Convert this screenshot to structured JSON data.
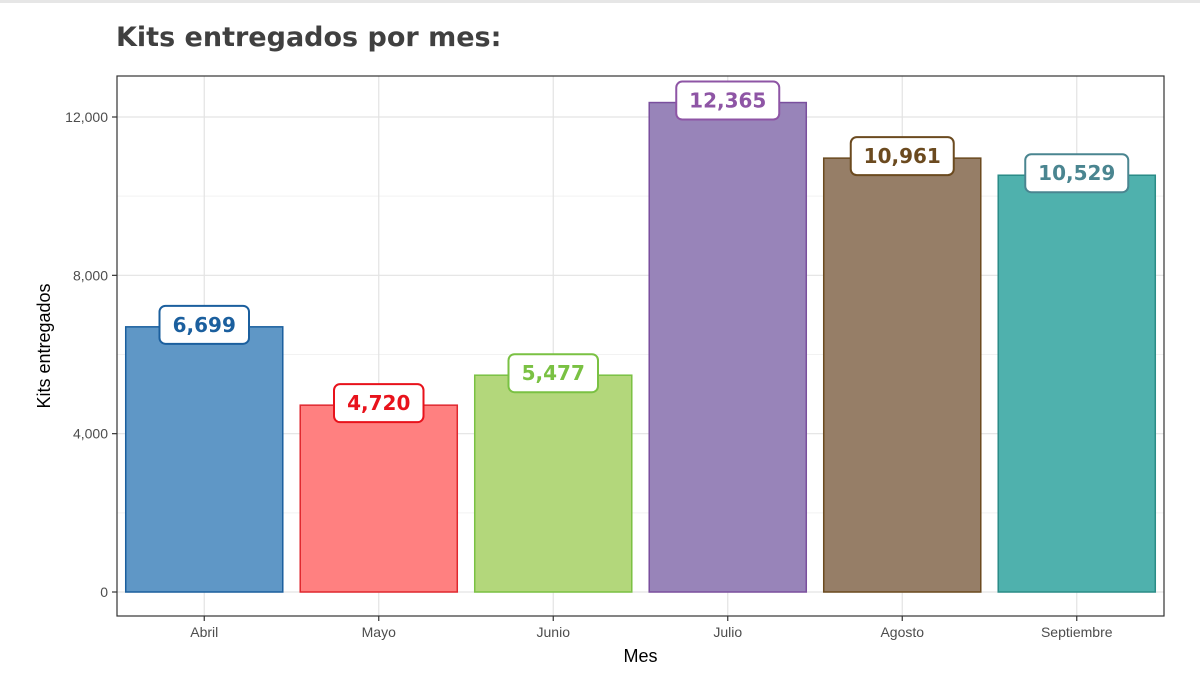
{
  "chart_data": {
    "type": "bar",
    "title": "Kits entregados por mes:",
    "xlabel": "Mes",
    "ylabel": "Kits entregados",
    "categories": [
      "Abril",
      "Mayo",
      "Junio",
      "Julio",
      "Agosto",
      "Septiembre"
    ],
    "values": [
      6699,
      4720,
      5477,
      12365,
      10961,
      10529
    ],
    "value_labels": [
      "6,699",
      "4,720",
      "5,477",
      "12,365",
      "10,961",
      "10,529"
    ],
    "ylim": [
      0,
      12900
    ],
    "yticks": [
      0,
      4000,
      8000,
      12000
    ],
    "ytick_labels": [
      "0",
      "4,000",
      "8,000",
      "12,000"
    ],
    "grid": true,
    "legend": "none",
    "colors": {
      "fill": [
        "#5f97c6",
        "#ff8080",
        "#b3d77b",
        "#9884b9",
        "#967e67",
        "#4fb1ad"
      ],
      "border": [
        "#1b5f9e",
        "#e0282f",
        "#7ac143",
        "#7a4f9e",
        "#6b4a1f",
        "#2a8c87"
      ],
      "label": [
        "#1b5f9e",
        "#e8121b",
        "#7ac143",
        "#8e55a5",
        "#6b4a1f",
        "#4a8590"
      ]
    }
  }
}
